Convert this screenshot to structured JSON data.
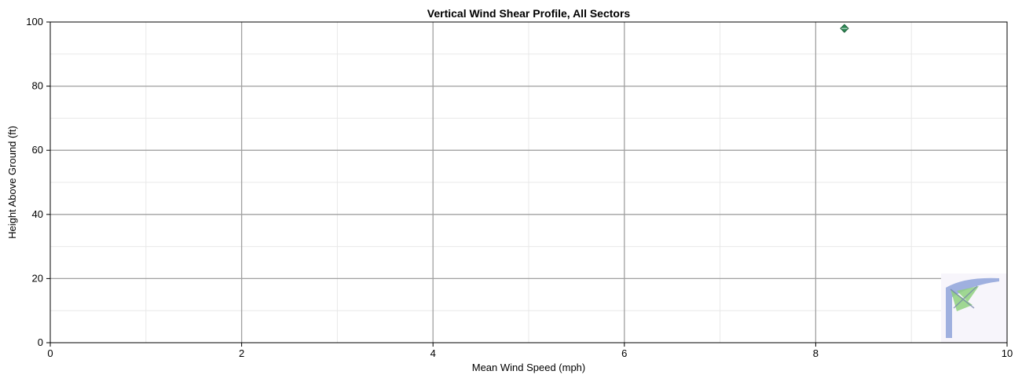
{
  "chart_data": {
    "type": "scatter",
    "title": "Vertical Wind Shear Profile, All Sectors",
    "xlabel": "Mean Wind Speed (mph)",
    "ylabel": "Height Above Ground (ft)",
    "xlim": [
      0,
      10
    ],
    "ylim": [
      0,
      100
    ],
    "x_major_ticks": [
      0,
      2,
      4,
      6,
      8,
      10
    ],
    "x_tick_labels": [
      "0",
      "2",
      "4",
      "6",
      "8",
      "10"
    ],
    "x_minor_ticks": [
      1,
      3,
      5,
      7,
      9
    ],
    "y_major_ticks": [
      0,
      20,
      40,
      60,
      80,
      100
    ],
    "y_tick_labels": [
      "0",
      "20",
      "40",
      "60",
      "80",
      "100"
    ],
    "y_minor_ticks": [
      10,
      30,
      50,
      70,
      90
    ],
    "grid": true,
    "legend": "none",
    "series": [
      {
        "marker": "diamond",
        "color": "#2e8b57",
        "points": [
          {
            "x": 8.3,
            "y": 98
          }
        ]
      }
    ],
    "colors": {
      "major_grid": "#a0a0a0",
      "minor_grid": "#e8e8e8",
      "axis": "#000000",
      "plot_background": "#ffffff",
      "watermark_blue": "#8fa3d9",
      "watermark_green": "#8fd17f"
    }
  }
}
